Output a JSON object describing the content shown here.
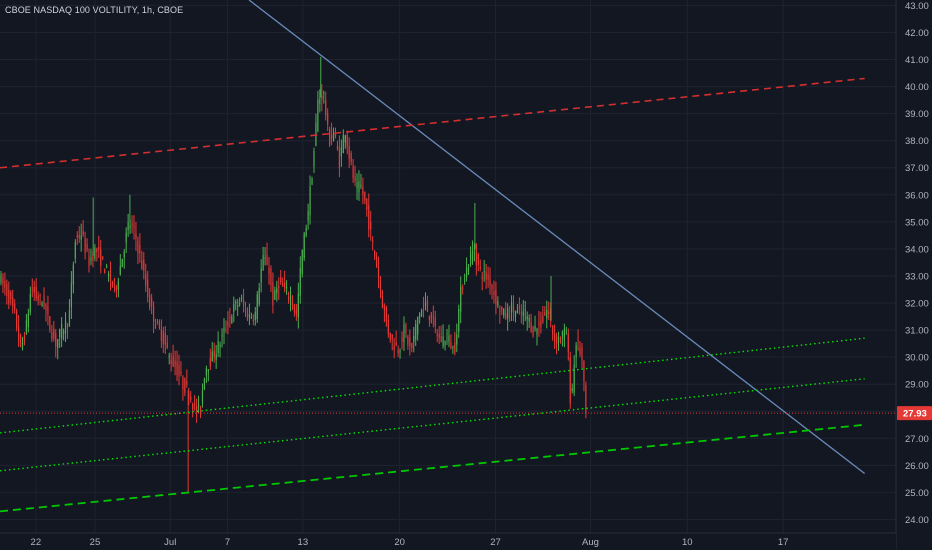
{
  "header": {
    "title": "CBOE NASDAQ 100 VOLTILITY, 1h, CBOE"
  },
  "colors": {
    "background": "#131722",
    "grid": "#1f2330",
    "up": "#26a69a",
    "up_candle": "#4caf50",
    "down_candle": "#e53935",
    "trendline": "#6a8cbc",
    "red_dashed": "#d32f2f",
    "green_dotted": "#00e600",
    "green_dashed": "#00c800",
    "price_line": "#e53935",
    "price_badge": "#e53935"
  },
  "chart_data": {
    "type": "candlestick",
    "title": "CBOE NASDAQ 100 VOLTILITY, 1h, CBOE",
    "ylim": [
      23.5,
      43.2
    ],
    "y_ticks": [
      "24.00",
      "25.00",
      "26.00",
      "27.00",
      "28.00",
      "29.00",
      "30.00",
      "31.00",
      "32.00",
      "33.00",
      "34.00",
      "35.00",
      "36.00",
      "37.00",
      "38.00",
      "39.00",
      "40.00",
      "41.00",
      "42.00",
      "43.00"
    ],
    "x_ticks": [
      {
        "label": "22",
        "pos": 0.04
      },
      {
        "label": "25",
        "pos": 0.106
      },
      {
        "label": "Jul",
        "pos": 0.19
      },
      {
        "label": "7",
        "pos": 0.254
      },
      {
        "label": "13",
        "pos": 0.338
      },
      {
        "label": "20",
        "pos": 0.446
      },
      {
        "label": "27",
        "pos": 0.553
      },
      {
        "label": "Aug",
        "pos": 0.659
      },
      {
        "label": "10",
        "pos": 0.767
      },
      {
        "label": "17",
        "pos": 0.874
      }
    ],
    "current_price": "27.93",
    "current_price_value": 27.93,
    "price_path": [
      [
        0.0,
        33.0
      ],
      [
        0.01,
        32.3
      ],
      [
        0.018,
        31.5
      ],
      [
        0.024,
        30.3
      ],
      [
        0.03,
        31.0
      ],
      [
        0.036,
        32.6
      ],
      [
        0.042,
        32.2
      ],
      [
        0.05,
        32.0
      ],
      [
        0.056,
        31.2
      ],
      [
        0.063,
        30.5
      ],
      [
        0.07,
        31.0
      ],
      [
        0.078,
        31.4
      ],
      [
        0.085,
        34.3
      ],
      [
        0.092,
        34.6
      ],
      [
        0.1,
        33.5
      ],
      [
        0.108,
        34.0
      ],
      [
        0.115,
        33.5
      ],
      [
        0.122,
        33.0
      ],
      [
        0.13,
        32.5
      ],
      [
        0.138,
        33.8
      ],
      [
        0.145,
        35.0
      ],
      [
        0.152,
        34.5
      ],
      [
        0.16,
        33.3
      ],
      [
        0.168,
        32.0
      ],
      [
        0.175,
        31.2
      ],
      [
        0.182,
        30.8
      ],
      [
        0.19,
        30.0
      ],
      [
        0.198,
        29.6
      ],
      [
        0.205,
        29.0
      ],
      [
        0.212,
        28.7
      ],
      [
        0.218,
        28.1
      ],
      [
        0.224,
        28.0
      ],
      [
        0.23,
        29.6
      ],
      [
        0.238,
        30.0
      ],
      [
        0.246,
        30.5
      ],
      [
        0.254,
        31.2
      ],
      [
        0.262,
        31.8
      ],
      [
        0.27,
        32.1
      ],
      [
        0.278,
        31.5
      ],
      [
        0.286,
        31.6
      ],
      [
        0.294,
        33.6
      ],
      [
        0.3,
        33.5
      ],
      [
        0.306,
        32.0
      ],
      [
        0.312,
        32.8
      ],
      [
        0.32,
        32.4
      ],
      [
        0.326,
        32.2
      ],
      [
        0.332,
        31.5
      ],
      [
        0.338,
        33.8
      ],
      [
        0.344,
        35.2
      ],
      [
        0.35,
        37.0
      ],
      [
        0.356,
        39.5
      ],
      [
        0.362,
        39.8
      ],
      [
        0.368,
        38.0
      ],
      [
        0.374,
        38.3
      ],
      [
        0.38,
        37.2
      ],
      [
        0.386,
        38.5
      ],
      [
        0.392,
        37.2
      ],
      [
        0.398,
        36.2
      ],
      [
        0.404,
        36.3
      ],
      [
        0.41,
        35.5
      ],
      [
        0.416,
        34.3
      ],
      [
        0.422,
        33.3
      ],
      [
        0.428,
        32.0
      ],
      [
        0.434,
        31.0
      ],
      [
        0.44,
        30.5
      ],
      [
        0.446,
        30.3
      ],
      [
        0.452,
        31.0
      ],
      [
        0.46,
        30.2
      ],
      [
        0.468,
        31.6
      ],
      [
        0.476,
        31.9
      ],
      [
        0.484,
        31.3
      ],
      [
        0.492,
        30.6
      ],
      [
        0.5,
        30.8
      ],
      [
        0.508,
        30.2
      ],
      [
        0.516,
        32.6
      ],
      [
        0.524,
        33.5
      ],
      [
        0.53,
        34.0
      ],
      [
        0.536,
        33.2
      ],
      [
        0.542,
        33.0
      ],
      [
        0.548,
        32.8
      ],
      [
        0.556,
        32.0
      ],
      [
        0.564,
        31.5
      ],
      [
        0.572,
        31.8
      ],
      [
        0.58,
        31.6
      ],
      [
        0.588,
        31.6
      ],
      [
        0.596,
        31.0
      ],
      [
        0.604,
        31.2
      ],
      [
        0.612,
        31.8
      ],
      [
        0.62,
        30.6
      ],
      [
        0.628,
        30.8
      ],
      [
        0.634,
        30.9
      ],
      [
        0.638,
        28.2
      ],
      [
        0.644,
        30.6
      ],
      [
        0.65,
        30.1
      ],
      [
        0.655,
        27.93
      ]
    ],
    "spikes": [
      {
        "pos": 0.358,
        "high": 41.1
      },
      {
        "pos": 0.21,
        "low": 25.0
      },
      {
        "pos": 0.53,
        "high": 35.7
      },
      {
        "pos": 0.145,
        "high": 36.0
      },
      {
        "pos": 0.104,
        "high": 35.9
      },
      {
        "pos": 0.615,
        "high": 33.0
      }
    ],
    "lines": [
      {
        "name": "descending-trendline",
        "style": "solid",
        "from": [
          0.278,
          43.2
        ],
        "to": [
          0.965,
          25.7
        ]
      },
      {
        "name": "upper-red-channel",
        "style": "dashed",
        "from": [
          0.0,
          37.0
        ],
        "to": [
          0.965,
          40.3
        ]
      },
      {
        "name": "green-dotted-upper",
        "style": "dotted",
        "from": [
          0.0,
          27.2
        ],
        "to": [
          0.965,
          30.7
        ]
      },
      {
        "name": "green-dotted-lower",
        "style": "dotted",
        "from": [
          0.0,
          25.8
        ],
        "to": [
          0.965,
          29.2
        ]
      },
      {
        "name": "green-dashed-lower",
        "style": "dashed",
        "from": [
          0.0,
          24.3
        ],
        "to": [
          0.965,
          27.5
        ]
      }
    ]
  }
}
